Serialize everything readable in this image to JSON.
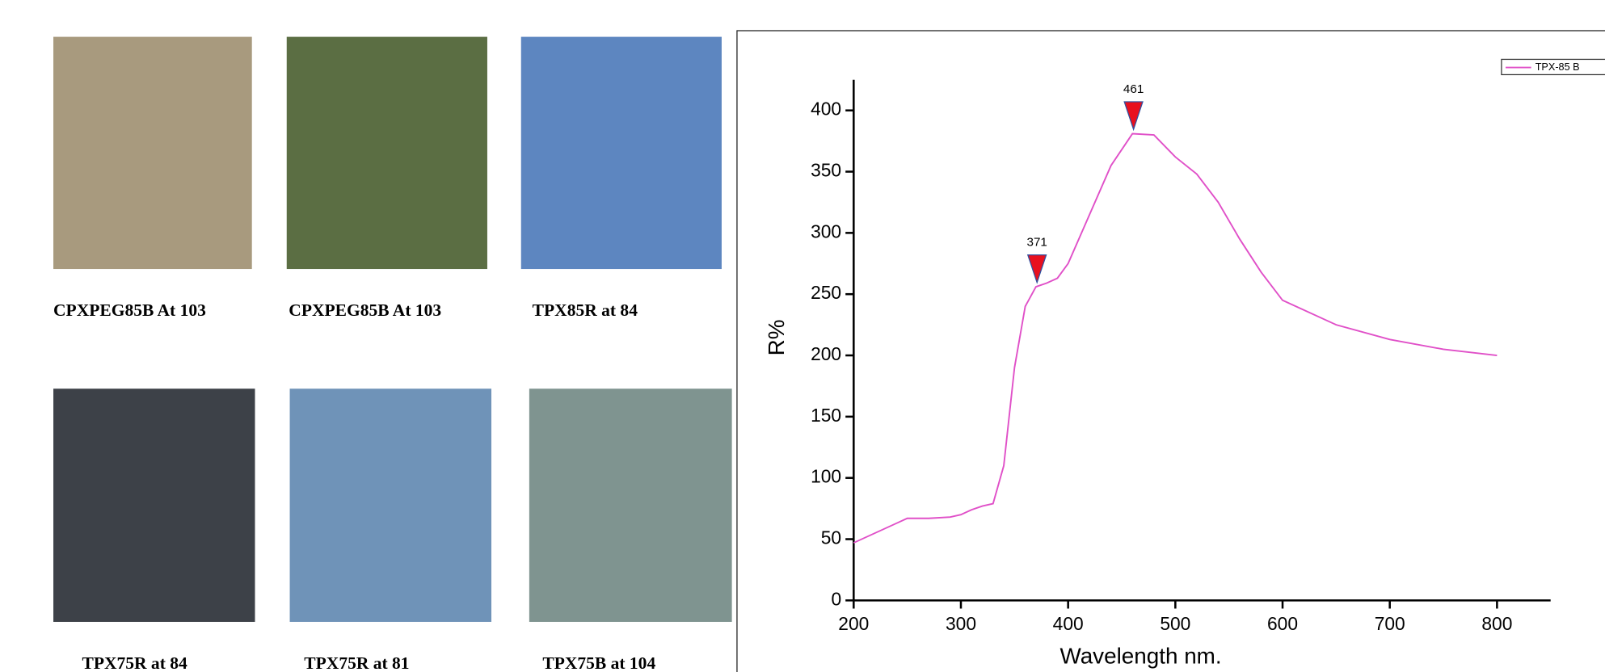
{
  "images": [
    {
      "caption": "CPXPEG85B At 103",
      "color": "#a89a7e"
    },
    {
      "caption": "CPXPEG85B At 103",
      "color": "#5b6e43"
    },
    {
      "caption": "TPX85R at 84",
      "color": "#5d86c0"
    },
    {
      "caption": "TPX75R at 84",
      "color": "#3d4148"
    },
    {
      "caption": "TPX75R at 81",
      "color": "#6f93b8"
    },
    {
      "caption": "TPX75B at 104",
      "color": "#7f9490"
    }
  ],
  "chart_data": {
    "type": "line",
    "x_label": "Wavelength nm.",
    "y_label": "R%",
    "x": [
      200,
      220,
      240,
      250,
      270,
      290,
      300,
      310,
      320,
      330,
      340,
      350,
      360,
      370,
      380,
      390,
      400,
      420,
      440,
      460,
      480,
      500,
      520,
      540,
      560,
      580,
      600,
      650,
      700,
      750,
      800
    ],
    "series": [
      {
        "name": "TPX-85 B",
        "color": "#e050c8",
        "values": [
          47,
          55,
          63,
          67,
          67,
          68,
          70,
          74,
          77,
          79,
          110,
          190,
          240,
          256,
          259,
          263,
          275,
          315,
          355,
          381,
          380,
          362,
          348,
          325,
          295,
          268,
          245,
          225,
          213,
          205,
          200
        ]
      }
    ],
    "peaks": {
      "x": [
        371,
        461
      ],
      "values": [
        257,
        382
      ],
      "color": "#e8101e"
    },
    "xlim": [
      200,
      850
    ],
    "xticks": [
      200,
      300,
      400,
      500,
      600,
      700,
      800
    ],
    "ylim": [
      0,
      425
    ],
    "yticks": [
      0,
      50,
      100,
      150,
      200,
      250,
      300,
      350,
      400
    ],
    "legend": "top-right"
  }
}
